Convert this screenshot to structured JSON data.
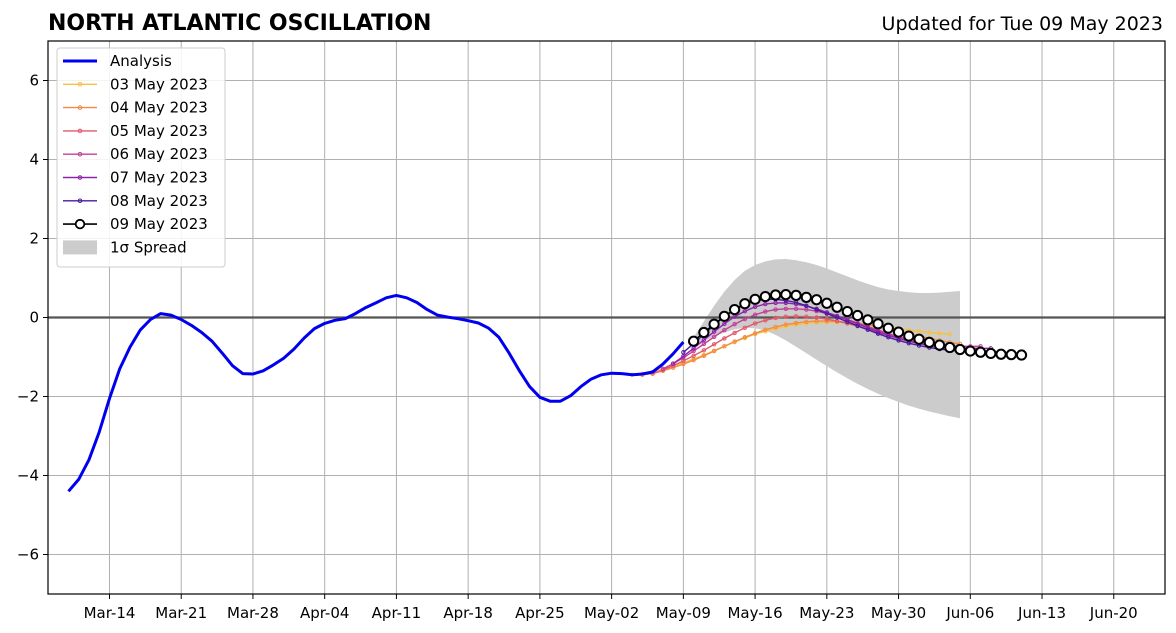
{
  "chart_data": {
    "type": "line",
    "title": "NORTH ATLANTIC OSCILLATION",
    "subtitle": "Updated for Tue 09 May 2023",
    "xlabel": "",
    "ylabel": "",
    "x_type": "date",
    "xlim": [
      "2023-03-08",
      "2023-06-25"
    ],
    "ylim": [
      -7,
      7
    ],
    "y_ticks": [
      -6,
      -4,
      -2,
      0,
      2,
      4,
      6
    ],
    "x_ticks": [
      {
        "date": "2023-03-14",
        "label": "Mar-14"
      },
      {
        "date": "2023-03-21",
        "label": "Mar-21"
      },
      {
        "date": "2023-03-28",
        "label": "Mar-28"
      },
      {
        "date": "2023-04-04",
        "label": "Apr-04"
      },
      {
        "date": "2023-04-11",
        "label": "Apr-11"
      },
      {
        "date": "2023-04-18",
        "label": "Apr-18"
      },
      {
        "date": "2023-04-25",
        "label": "Apr-25"
      },
      {
        "date": "2023-05-02",
        "label": "May-02"
      },
      {
        "date": "2023-05-09",
        "label": "May-09"
      },
      {
        "date": "2023-05-16",
        "label": "May-16"
      },
      {
        "date": "2023-05-23",
        "label": "May-23"
      },
      {
        "date": "2023-05-30",
        "label": "May-30"
      },
      {
        "date": "2023-06-06",
        "label": "Jun-06"
      },
      {
        "date": "2023-06-13",
        "label": "Jun-13"
      },
      {
        "date": "2023-06-20",
        "label": "Jun-20"
      }
    ],
    "grid": true,
    "zero_line": true,
    "legend_position": "top-left",
    "analysis": {
      "name": "Analysis",
      "color": "#0000ee",
      "start_date": "2023-03-10",
      "values": [
        -4.4,
        -4.1,
        -3.6,
        -2.9,
        -2.05,
        -1.3,
        -0.75,
        -0.32,
        -0.05,
        0.1,
        0.06,
        -0.05,
        -0.2,
        -0.38,
        -0.6,
        -0.9,
        -1.22,
        -1.42,
        -1.43,
        -1.35,
        -1.2,
        -1.03,
        -0.8,
        -0.52,
        -0.28,
        -0.15,
        -0.07,
        -0.03,
        0.1,
        0.25,
        0.37,
        0.5,
        0.56,
        0.5,
        0.38,
        0.2,
        0.06,
        0.01,
        -0.03,
        -0.08,
        -0.14,
        -0.27,
        -0.5,
        -0.9,
        -1.35,
        -1.75,
        -2.02,
        -2.12,
        -2.12,
        -1.98,
        -1.75,
        -1.56,
        -1.45,
        -1.41,
        -1.42,
        -1.45,
        -1.43,
        -1.38,
        -1.18,
        -0.92,
        -0.62
      ]
    },
    "forecasts": [
      {
        "name": "03 May 2023",
        "color": "#f5c242",
        "start_date": "2023-05-04",
        "values": [
          -1.45,
          -1.43,
          -1.38,
          -1.3,
          -1.23,
          -1.15,
          -1.05,
          -0.95,
          -0.84,
          -0.73,
          -0.62,
          -0.52,
          -0.42,
          -0.35,
          -0.28,
          -0.22,
          -0.18,
          -0.15,
          -0.13,
          -0.12,
          -0.12,
          -0.13,
          -0.15,
          -0.18,
          -0.21,
          -0.25,
          -0.29,
          -0.32,
          -0.35,
          -0.38,
          -0.4,
          -0.42
        ]
      },
      {
        "name": "04 May 2023",
        "color": "#f28c44",
        "start_date": "2023-05-05",
        "values": [
          -1.45,
          -1.42,
          -1.35,
          -1.27,
          -1.18,
          -1.08,
          -0.97,
          -0.85,
          -0.73,
          -0.61,
          -0.5,
          -0.4,
          -0.31,
          -0.24,
          -0.18,
          -0.14,
          -0.11,
          -0.09,
          -0.09,
          -0.1,
          -0.12,
          -0.15,
          -0.19,
          -0.24,
          -0.29,
          -0.35,
          -0.41,
          -0.47,
          -0.53,
          -0.58,
          -0.63,
          -0.67
        ]
      },
      {
        "name": "05 May 2023",
        "color": "#e15a6b",
        "start_date": "2023-05-06",
        "values": [
          -1.42,
          -1.33,
          -1.22,
          -1.1,
          -0.97,
          -0.83,
          -0.68,
          -0.53,
          -0.39,
          -0.26,
          -0.15,
          -0.07,
          -0.01,
          0.02,
          0.03,
          0.02,
          0.0,
          -0.04,
          -0.09,
          -0.15,
          -0.22,
          -0.3,
          -0.38,
          -0.45,
          -0.52,
          -0.58,
          -0.63,
          -0.67,
          -0.7,
          -0.72,
          -0.73,
          -0.74
        ]
      },
      {
        "name": "06 May 2023",
        "color": "#c23f98",
        "start_date": "2023-05-07",
        "values": [
          -1.3,
          -1.17,
          -1.02,
          -0.85,
          -0.67,
          -0.49,
          -0.32,
          -0.17,
          -0.04,
          0.07,
          0.15,
          0.2,
          0.22,
          0.22,
          0.2,
          0.16,
          0.1,
          0.03,
          -0.05,
          -0.14,
          -0.23,
          -0.32,
          -0.41,
          -0.49,
          -0.56,
          -0.62,
          -0.67,
          -0.7,
          -0.72,
          -0.73,
          -0.73,
          -0.73
        ]
      },
      {
        "name": "07 May 2023",
        "color": "#8e23ad",
        "start_date": "2023-05-08",
        "values": [
          -1.17,
          -0.98,
          -0.78,
          -0.57,
          -0.36,
          -0.16,
          0.02,
          0.16,
          0.27,
          0.34,
          0.37,
          0.37,
          0.34,
          0.29,
          0.22,
          0.13,
          0.04,
          -0.06,
          -0.16,
          -0.26,
          -0.36,
          -0.45,
          -0.53,
          -0.6,
          -0.66,
          -0.71,
          -0.74,
          -0.76,
          -0.77,
          -0.78,
          -0.78,
          -0.78
        ]
      },
      {
        "name": "08 May 2023",
        "color": "#4b1a9e",
        "start_date": "2023-05-09",
        "values": [
          -0.88,
          -0.66,
          -0.43,
          -0.2,
          0.02,
          0.2,
          0.33,
          0.42,
          0.46,
          0.46,
          0.43,
          0.38,
          0.3,
          0.2,
          0.1,
          0.0,
          -0.11,
          -0.21,
          -0.31,
          -0.41,
          -0.5,
          -0.58,
          -0.65,
          -0.71,
          -0.76,
          -0.8,
          -0.83,
          -0.85,
          -0.86,
          -0.87,
          -0.87,
          -0.87
        ]
      },
      {
        "name": "09 May 2023",
        "color": "#000000",
        "start_date": "2023-05-10",
        "values": [
          -0.6,
          -0.38,
          -0.17,
          0.03,
          0.2,
          0.35,
          0.46,
          0.53,
          0.57,
          0.58,
          0.56,
          0.51,
          0.45,
          0.36,
          0.26,
          0.15,
          0.05,
          -0.06,
          -0.16,
          -0.27,
          -0.37,
          -0.47,
          -0.55,
          -0.63,
          -0.7,
          -0.76,
          -0.81,
          -0.85,
          -0.88,
          -0.91,
          -0.93,
          -0.94,
          -0.95
        ]
      }
    ],
    "spread": {
      "name": "1σ Spread",
      "color": "#cccccc",
      "start_date": "2023-05-10",
      "upper": [
        -0.5,
        -0.1,
        0.3,
        0.65,
        0.95,
        1.18,
        1.33,
        1.42,
        1.47,
        1.48,
        1.45,
        1.4,
        1.33,
        1.24,
        1.14,
        1.04,
        0.94,
        0.85,
        0.77,
        0.71,
        0.67,
        0.64,
        0.62,
        0.62,
        0.63,
        0.65,
        0.67
      ],
      "lower": [
        -0.72,
        -0.6,
        -0.48,
        -0.38,
        -0.3,
        -0.26,
        -0.27,
        -0.33,
        -0.44,
        -0.58,
        -0.74,
        -0.9,
        -1.07,
        -1.23,
        -1.39,
        -1.54,
        -1.68,
        -1.81,
        -1.93,
        -2.04,
        -2.14,
        -2.23,
        -2.31,
        -2.38,
        -2.44,
        -2.5,
        -2.55
      ]
    }
  }
}
